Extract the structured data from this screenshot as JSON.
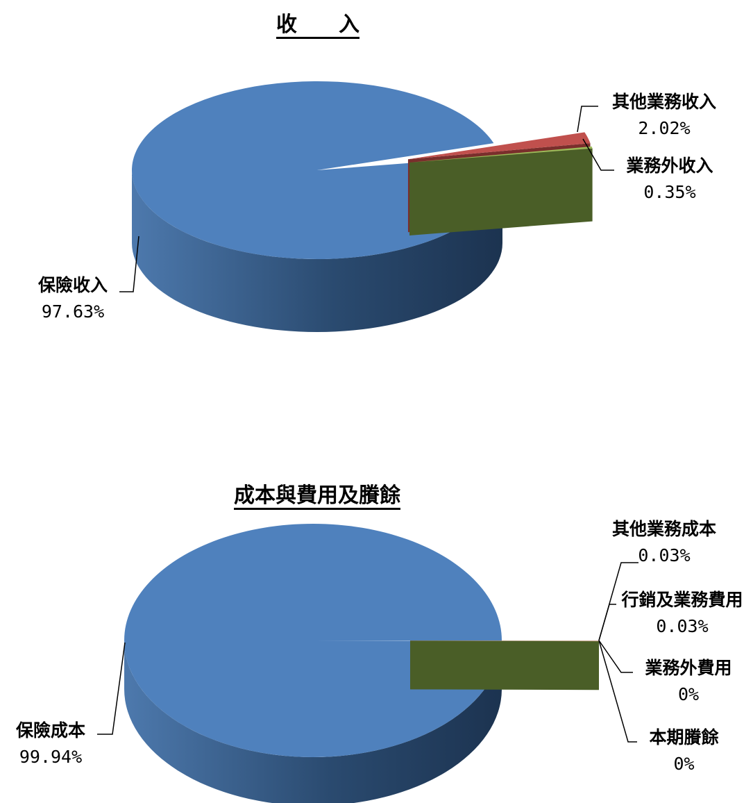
{
  "chart_data": [
    {
      "type": "pie",
      "title": "收　　入",
      "slices": [
        {
          "label": "保險收入",
          "value": 97.63,
          "value_label": "97.63%",
          "color": "#4f81bd",
          "side_color": "#2f4f75"
        },
        {
          "label": "其他業務收入",
          "value": 2.02,
          "value_label": "2.02%",
          "color": "#c0504d",
          "side_color": "#7a2e2c"
        },
        {
          "label": "業務外收入",
          "value": 0.35,
          "value_label": "0.35%",
          "color": "#9bbb59",
          "side_color": "#4a5e27"
        }
      ]
    },
    {
      "type": "pie",
      "title": "成本與費用及賸餘",
      "slices": [
        {
          "label": "保險成本",
          "value": 99.94,
          "value_label": "99.94%",
          "color": "#4f81bd",
          "side_color": "#2f4f75"
        },
        {
          "label": "其他業務成本",
          "value": 0.03,
          "value_label": "0.03%",
          "color": "#c0504d",
          "side_color": "#7a2e2c"
        },
        {
          "label": "行銷及業務費用",
          "value": 0.03,
          "value_label": "0.03%",
          "color": "#9bbb59",
          "side_color": "#4a5e27"
        },
        {
          "label": "業務外費用",
          "value": 0,
          "value_label": "0%",
          "color": "#8064a2",
          "side_color": "#4b3b60"
        },
        {
          "label": "本期賸餘",
          "value": 0,
          "value_label": "0%",
          "color": "#4bacc6",
          "side_color": "#1f3d4a"
        }
      ]
    }
  ]
}
